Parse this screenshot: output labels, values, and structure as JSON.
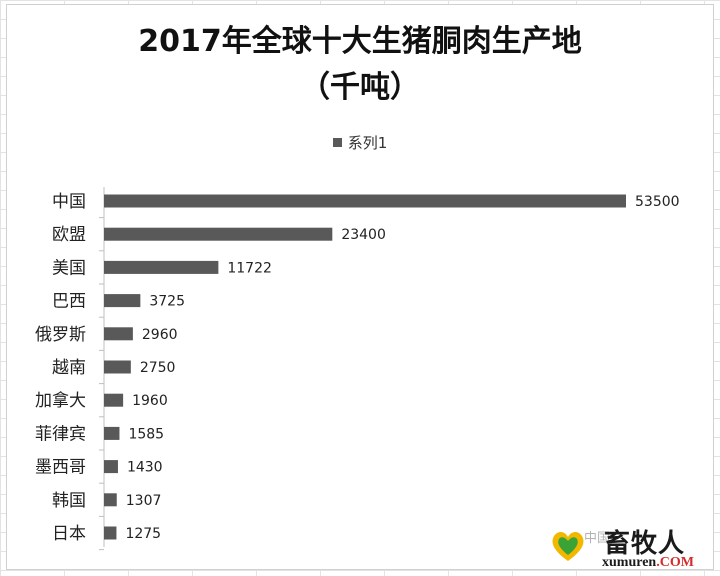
{
  "chart_data": {
    "type": "bar",
    "orientation": "horizontal",
    "title_lines": [
      "2017年全球十大生猪胴肉生产地",
      "（千吨）"
    ],
    "categories": [
      "中国",
      "欧盟",
      "美国",
      "巴西",
      "俄罗斯",
      "越南",
      "加拿大",
      "菲律宾",
      "墨西哥",
      "韩国",
      "日本"
    ],
    "series": [
      {
        "name": "系列1",
        "values": [
          53500,
          23400,
          11722,
          3725,
          2960,
          2750,
          1960,
          1585,
          1430,
          1307,
          1275
        ],
        "color": "#595959"
      }
    ],
    "data_labels": true,
    "legend_position": "top",
    "grid": false,
    "xlim": [
      0,
      53500
    ]
  },
  "watermark": {
    "overlay_text": "中国",
    "name": "畜牧人",
    "url_main": "xumuren",
    "url_suffix": ".COM"
  }
}
